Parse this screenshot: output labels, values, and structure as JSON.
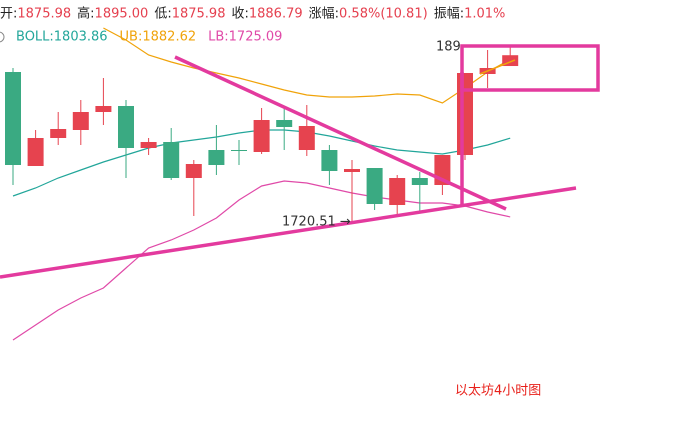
{
  "chart_data": {
    "type": "candlestick",
    "header": [
      "开:",
      "1875.98",
      "高:",
      "1895.00",
      "低:",
      "1875.98",
      "收:",
      "1886.79",
      "涨幅:",
      "0.58%(10.81)",
      "振幅:",
      "1.01%"
    ],
    "ylim": [
      1519,
      1942
    ],
    "up_color": "#e6434f",
    "down_color": "#3aaa82",
    "open": [
      1870,
      1776,
      1804,
      1812,
      1830,
      1836,
      1794,
      1800,
      1764,
      1792,
      1792,
      1790,
      1822,
      1792,
      1792,
      1770,
      1774,
      1737,
      1764,
      1757,
      1787,
      1868,
      1875.98
    ],
    "high": [
      1874,
      1812,
      1830,
      1842,
      1864,
      1842,
      1804,
      1814,
      1782,
      1817,
      1802,
      1834,
      1834,
      1837,
      1797,
      1782,
      1774,
      1767,
      1770,
      1787,
      1869,
      1892,
      1895
    ],
    "low": [
      1757,
      1776,
      1797,
      1797,
      1817,
      1764,
      1787,
      1762,
      1726,
      1767,
      1777,
      1788,
      1792,
      1786,
      1757,
      1720.51,
      1732,
      1727,
      1730,
      1747,
      1782,
      1854,
      1875.98
    ],
    "close": [
      1777,
      1804,
      1813,
      1830,
      1836,
      1794,
      1800,
      1764,
      1778,
      1777,
      1791,
      1822,
      1815,
      1816,
      1771,
      1773,
      1738,
      1764,
      1757,
      1787,
      1869,
      1874,
      1886.79
    ],
    "series": [
      {
        "name": "BOLL:1803.86",
        "color": "#22a69a",
        "values": [
          1746,
          1754,
          1764,
          1772,
          1780,
          1787,
          1794,
          1799,
          1802,
          1805,
          1809,
          1812,
          1812,
          1810,
          1806,
          1801,
          1796,
          1792,
          1790,
          1788,
          1792,
          1797,
          1803.86
        ]
      },
      {
        "name": "UB:1882.62",
        "color": "#f0a30a",
        "values": [
          null,
          null,
          null,
          null,
          1914,
          1902,
          1887,
          1880,
          1874,
          1869,
          1864,
          1858,
          1852,
          1847,
          1845,
          1845,
          1846,
          1848,
          1847,
          1839,
          1854,
          1870,
          1882.62
        ]
      },
      {
        "name": "LB:1725.09",
        "color": "#e04aa8",
        "values": [
          1602,
          1617,
          1632,
          1644,
          1654,
          1674,
          1694,
          1702,
          1712,
          1724,
          1742,
          1756,
          1761,
          1759,
          1754,
          1749,
          1745,
          1742,
          1739,
          1739,
          1736,
          1730,
          1725.09
        ]
      }
    ],
    "annotations": [
      "1720.51 →",
      "189"
    ],
    "watermark": "以太坊4小时图"
  }
}
